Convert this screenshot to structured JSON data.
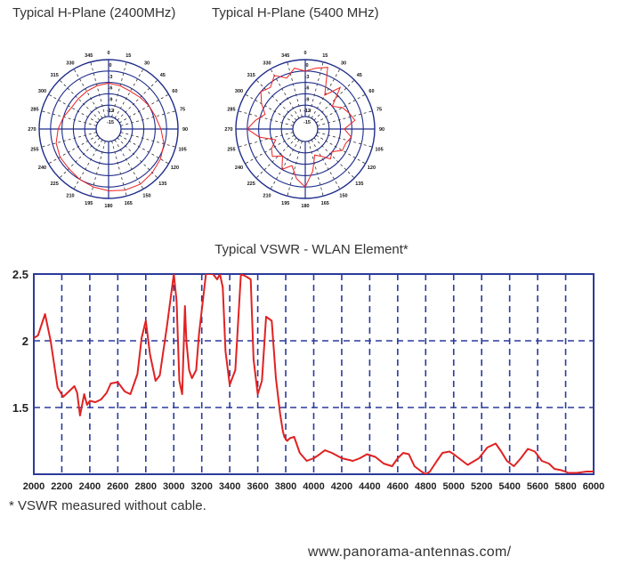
{
  "polar_charts": [
    {
      "title": "Typical H-Plane (2400MHz)",
      "angle_labels": [
        "0",
        "15",
        "30",
        "45",
        "60",
        "75",
        "90",
        "105",
        "120",
        "135",
        "150",
        "165",
        "180",
        "195",
        "210",
        "225",
        "240",
        "255",
        "270",
        "285",
        "300",
        "315",
        "330",
        "345"
      ],
      "radial_labels": [
        "0",
        "-3",
        "-6",
        "-9",
        "-12",
        "-15"
      ],
      "line_color": "#ee2222"
    },
    {
      "title": "Typical H-Plane (5400 MHz)",
      "angle_labels": [
        "0",
        "15",
        "30",
        "45",
        "60",
        "75",
        "90",
        "105",
        "120",
        "135",
        "150",
        "165",
        "180",
        "195",
        "210",
        "225",
        "240",
        "255",
        "270",
        "285",
        "300",
        "315",
        "330",
        "345"
      ],
      "radial_labels": [
        "0",
        "-3",
        "-6",
        "-9",
        "-12",
        "-15"
      ],
      "line_color": "#ee2222"
    }
  ],
  "chart_data": [
    {
      "type": "polar",
      "title": "Typical H-Plane (2400MHz)",
      "theta_deg": [
        0,
        15,
        30,
        45,
        60,
        75,
        90,
        105,
        120,
        135,
        150,
        165,
        180,
        195,
        210,
        225,
        240,
        255,
        270,
        285,
        300,
        315,
        330,
        345
      ],
      "r_db": [
        -6.2,
        -6.5,
        -6.8,
        -6.5,
        -6.0,
        -5.5,
        -4.5,
        -3.2,
        -2.5,
        -2.0,
        -1.5,
        -1.6,
        -2.0,
        -2.5,
        -3.0,
        -3.5,
        -3.5,
        -4.0,
        -5.0,
        -6.0,
        -7.0,
        -7.0,
        -6.8,
        -6.5
      ],
      "rlim": [
        -15,
        0
      ]
    },
    {
      "type": "polar",
      "title": "Typical H-Plane (5400 MHz)",
      "theta_deg": [
        0,
        10,
        20,
        30,
        40,
        50,
        60,
        70,
        80,
        90,
        100,
        110,
        120,
        130,
        140,
        150,
        160,
        170,
        180,
        190,
        200,
        210,
        220,
        230,
        240,
        250,
        260,
        270,
        280,
        290,
        300,
        310,
        320,
        330,
        340,
        350
      ],
      "r_db": [
        -3,
        -2,
        -1,
        -8,
        -4,
        -9,
        -7,
        -6,
        -5,
        -8,
        -6,
        -7,
        -7,
        -9,
        -8,
        -10,
        -11,
        -7,
        -3,
        -5,
        -8,
        -6,
        -9,
        -7,
        -8,
        -10,
        -6,
        -3,
        -5,
        -7,
        -5,
        -3,
        -4,
        -2,
        -4,
        -2
      ],
      "rlim": [
        -15,
        0
      ]
    },
    {
      "type": "line",
      "title": "Typical VSWR - WLAN Element*",
      "xlim": [
        2000,
        6000
      ],
      "ylim": [
        1.0,
        2.5
      ],
      "x_ticks": [
        2000,
        2200,
        2400,
        2600,
        2800,
        3000,
        3200,
        3400,
        3600,
        3800,
        4000,
        4200,
        4400,
        4600,
        4800,
        5000,
        5200,
        5400,
        5600,
        5800,
        6000
      ],
      "y_ticks": [
        1.5,
        2,
        2.5
      ],
      "grid": true,
      "series": [
        {
          "x": [
            2000,
            2030,
            2080,
            2120,
            2170,
            2210,
            2270,
            2290,
            2310,
            2330,
            2360,
            2380,
            2400,
            2440,
            2480,
            2520,
            2550,
            2600,
            2650,
            2690,
            2740,
            2770,
            2800,
            2830,
            2870,
            2900,
            2950,
            3000,
            3020,
            3040,
            3060,
            3080,
            3090,
            3110,
            3130,
            3160,
            3180,
            3230,
            3280,
            3310,
            3330,
            3350,
            3370,
            3400,
            3440,
            3480,
            3520,
            3550,
            3570,
            3600,
            3630,
            3660,
            3700,
            3730,
            3760,
            3780,
            3790,
            3810,
            3830,
            3860,
            3900,
            3950,
            4000,
            4030,
            4080,
            4130,
            4200,
            4280,
            4330,
            4380,
            4440,
            4500,
            4560,
            4600,
            4640,
            4680,
            4720,
            4770,
            4800,
            4830,
            4880,
            4920,
            4970,
            5000,
            5050,
            5100,
            5180,
            5240,
            5300,
            5340,
            5380,
            5430,
            5480,
            5530,
            5580,
            5630,
            5680,
            5720,
            5770,
            5820,
            5880,
            5950,
            6000
          ],
          "y": [
            2.02,
            2.04,
            2.2,
            2.0,
            1.65,
            1.58,
            1.64,
            1.66,
            1.61,
            1.44,
            1.6,
            1.52,
            1.55,
            1.54,
            1.56,
            1.61,
            1.68,
            1.69,
            1.62,
            1.6,
            1.75,
            2.02,
            2.15,
            1.9,
            1.7,
            1.74,
            2.1,
            2.5,
            2.3,
            1.7,
            1.6,
            2.26,
            2.0,
            1.78,
            1.72,
            1.78,
            2.05,
            2.5,
            2.5,
            2.46,
            2.5,
            2.4,
            1.92,
            1.67,
            1.78,
            2.5,
            2.48,
            2.46,
            1.86,
            1.6,
            1.7,
            2.18,
            2.15,
            1.72,
            1.45,
            1.32,
            1.28,
            1.25,
            1.27,
            1.28,
            1.16,
            1.1,
            1.12,
            1.14,
            1.18,
            1.16,
            1.12,
            1.1,
            1.12,
            1.15,
            1.13,
            1.08,
            1.06,
            1.12,
            1.16,
            1.15,
            1.06,
            1.02,
            1.0,
            1.02,
            1.1,
            1.16,
            1.17,
            1.15,
            1.11,
            1.07,
            1.12,
            1.2,
            1.23,
            1.17,
            1.1,
            1.06,
            1.12,
            1.19,
            1.17,
            1.1,
            1.08,
            1.04,
            1.03,
            1.01,
            1.01,
            1.02,
            1.02
          ]
        }
      ]
    }
  ],
  "vswr": {
    "title": "Typical VSWR - WLAN Element*",
    "y_tick_labels": [
      "2.5",
      "2",
      "1.5"
    ],
    "x_tick_labels": [
      "2000",
      "2200",
      "2400",
      "2600",
      "2800",
      "3000",
      "3200",
      "3400",
      "3600",
      "3800",
      "4000",
      "4200",
      "4400",
      "4600",
      "4800",
      "5000",
      "5200",
      "5400",
      "5600",
      "5800",
      "6000"
    ],
    "line_color": "#e02222",
    "grid_color": "#2b3a9a"
  },
  "footnote": "* VSWR measured without cable.",
  "website": "www.panorama-antennas.com/"
}
